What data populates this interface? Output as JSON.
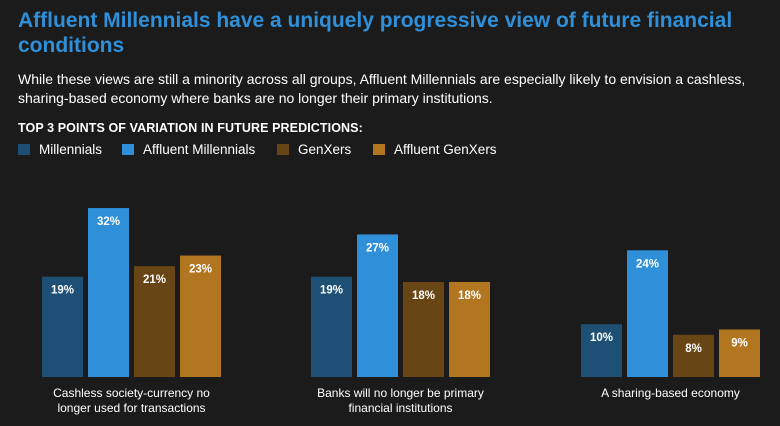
{
  "page": {
    "title": "Affluent Millennials have a uniquely progressive view of future financial conditions",
    "subtitle": "While these views are still a minority across all groups, Affluent Millennials are especially likely to envision a cashless, sharing-based economy where banks are no longer their primary institutions.",
    "section_heading": "TOP 3 POINTS OF VARIATION IN FUTURE PREDICTIONS:"
  },
  "colors": {
    "background": "#1b1b1b",
    "title": "#2f8fd8",
    "series": [
      "#1e5075",
      "#2f8fd8",
      "#684514",
      "#b27621"
    ]
  },
  "chart_data": {
    "type": "bar",
    "title": "TOP 3 POINTS OF VARIATION IN FUTURE PREDICTIONS:",
    "xlabel": "",
    "ylabel": "",
    "ylim": [
      0,
      35
    ],
    "grid": false,
    "legend_position": "top-left",
    "categories": [
      [
        "Cashless society-currency no",
        "longer used for transactions"
      ],
      [
        "Banks will no longer be primary",
        "financial institutions"
      ],
      [
        "A sharing-based economy"
      ]
    ],
    "series": [
      {
        "name": "Millennials",
        "values": [
          19,
          19,
          10
        ],
        "labels": [
          "19%",
          "19%",
          "10%"
        ]
      },
      {
        "name": "Affluent Millennials",
        "values": [
          32,
          27,
          24
        ],
        "labels": [
          "32%",
          "27%",
          "24%"
        ]
      },
      {
        "name": "GenXers",
        "values": [
          21,
          18,
          8
        ],
        "labels": [
          "21%",
          "18%",
          "8%"
        ]
      },
      {
        "name": "Affluent GenXers",
        "values": [
          23,
          18,
          9
        ],
        "labels": [
          "23%",
          "18%",
          "9%"
        ]
      }
    ]
  }
}
